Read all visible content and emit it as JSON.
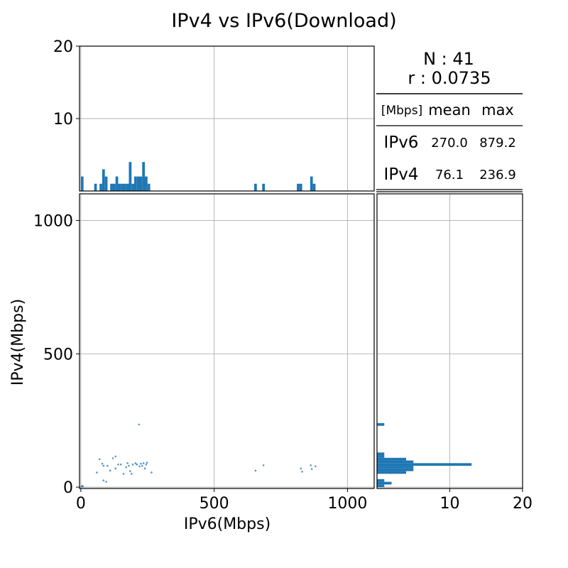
{
  "chart_data": {
    "type": "scatter",
    "title": "IPv4 vs IPv6(Download)",
    "xlabel": "IPv6(Mbps)",
    "ylabel": "IPv4(Mbps)",
    "xlim": [
      -5,
      1100
    ],
    "ylim": [
      -5,
      1100
    ],
    "xticks": [
      0,
      500,
      1000
    ],
    "yticks": [
      0,
      500,
      1000
    ],
    "grid": true,
    "marker_color": "#1f77b4",
    "points": [
      [
        5,
        5
      ],
      [
        2,
        2
      ],
      [
        8,
        3
      ],
      [
        60,
        55
      ],
      [
        70,
        105
      ],
      [
        80,
        88
      ],
      [
        85,
        80
      ],
      [
        85,
        25
      ],
      [
        95,
        20
      ],
      [
        100,
        80
      ],
      [
        110,
        62
      ],
      [
        120,
        108
      ],
      [
        130,
        115
      ],
      [
        130,
        70
      ],
      [
        140,
        85
      ],
      [
        150,
        85
      ],
      [
        160,
        50
      ],
      [
        170,
        75
      ],
      [
        175,
        90
      ],
      [
        180,
        80
      ],
      [
        185,
        60
      ],
      [
        190,
        50
      ],
      [
        195,
        85
      ],
      [
        205,
        90
      ],
      [
        210,
        85
      ],
      [
        218,
        235
      ],
      [
        220,
        78
      ],
      [
        225,
        88
      ],
      [
        230,
        80
      ],
      [
        235,
        90
      ],
      [
        240,
        70
      ],
      [
        245,
        85
      ],
      [
        248,
        92
      ],
      [
        265,
        55
      ],
      [
        655,
        62
      ],
      [
        685,
        82
      ],
      [
        825,
        70
      ],
      [
        830,
        58
      ],
      [
        862,
        82
      ],
      [
        866,
        68
      ],
      [
        880,
        78
      ]
    ],
    "top_hist": {
      "xlabel": "",
      "ylim": [
        0,
        20
      ],
      "yticks": [
        10,
        20
      ],
      "bin_width": 10,
      "bins": [
        {
          "start": 0,
          "count": 2
        },
        {
          "start": 50,
          "count": 1
        },
        {
          "start": 70,
          "count": 1
        },
        {
          "start": 80,
          "count": 3
        },
        {
          "start": 90,
          "count": 2
        },
        {
          "start": 110,
          "count": 1
        },
        {
          "start": 120,
          "count": 1
        },
        {
          "start": 130,
          "count": 2
        },
        {
          "start": 140,
          "count": 1
        },
        {
          "start": 150,
          "count": 1
        },
        {
          "start": 160,
          "count": 1
        },
        {
          "start": 170,
          "count": 1
        },
        {
          "start": 180,
          "count": 4
        },
        {
          "start": 190,
          "count": 1
        },
        {
          "start": 200,
          "count": 2
        },
        {
          "start": 210,
          "count": 2
        },
        {
          "start": 220,
          "count": 2
        },
        {
          "start": 230,
          "count": 4
        },
        {
          "start": 240,
          "count": 2
        },
        {
          "start": 250,
          "count": 1
        },
        {
          "start": 650,
          "count": 1
        },
        {
          "start": 680,
          "count": 1
        },
        {
          "start": 810,
          "count": 1
        },
        {
          "start": 820,
          "count": 1
        },
        {
          "start": 860,
          "count": 2
        },
        {
          "start": 870,
          "count": 1
        }
      ]
    },
    "right_hist": {
      "xlim": [
        0,
        20
      ],
      "xticks": [
        10,
        20
      ],
      "bin_width": 10,
      "bins": [
        {
          "start": 0,
          "count": 1
        },
        {
          "start": 10,
          "count": 2
        },
        {
          "start": 20,
          "count": 1
        },
        {
          "start": 50,
          "count": 4
        },
        {
          "start": 60,
          "count": 5
        },
        {
          "start": 70,
          "count": 5
        },
        {
          "start": 80,
          "count": 13
        },
        {
          "start": 90,
          "count": 5
        },
        {
          "start": 100,
          "count": 4
        },
        {
          "start": 110,
          "count": 1
        },
        {
          "start": 120,
          "count": 1
        },
        {
          "start": 230,
          "count": 1
        }
      ]
    }
  },
  "stats": {
    "n_text": "N : 41",
    "r_text": "r : 0.0735",
    "unit_label": "[Mbps]",
    "col_mean": "mean",
    "col_max": "max",
    "rows": [
      {
        "label": "IPv6",
        "mean": "270.0",
        "max": "879.2"
      },
      {
        "label": "IPv4",
        "mean": "76.1",
        "max": "236.9"
      }
    ]
  }
}
